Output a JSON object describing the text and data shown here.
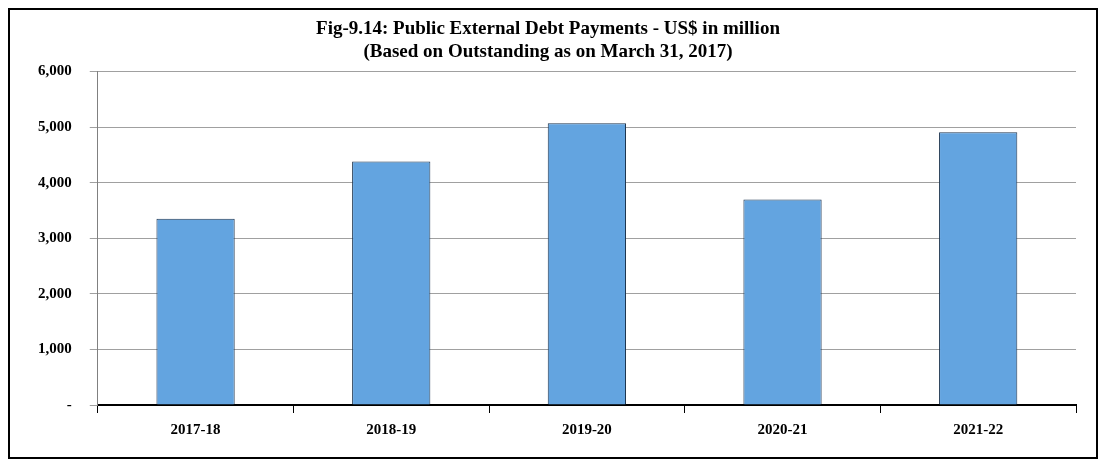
{
  "chart_data": {
    "type": "bar",
    "title": [
      "Fig-9.14: Public External Debt Payments - US$ in million",
      "(Based on Outstanding as on March 31, 2017)"
    ],
    "categories": [
      "2017-18",
      "2018-19",
      "2019-20",
      "2020-21",
      "2021-22"
    ],
    "values": [
      3350,
      4380,
      5070,
      3700,
      4910
    ],
    "color": "#63a4e0",
    "ylim": [
      0,
      6000
    ],
    "yticks": [
      {
        "value": 0,
        "label": "-"
      },
      {
        "value": 1000,
        "label": "1,000"
      },
      {
        "value": 2000,
        "label": "2,000"
      },
      {
        "value": 3000,
        "label": "3,000"
      },
      {
        "value": 4000,
        "label": "4,000"
      },
      {
        "value": 5000,
        "label": "5,000"
      },
      {
        "value": 6000,
        "label": "6,000"
      }
    ],
    "grid": "y",
    "legend": false
  }
}
